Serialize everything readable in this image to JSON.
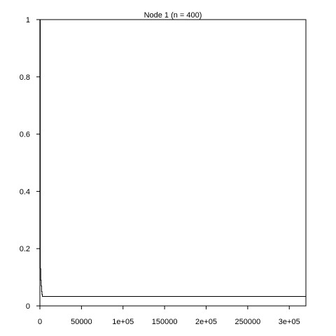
{
  "chart_data": {
    "type": "line",
    "title": "Node 1 (n = 400)",
    "xlabel": "",
    "ylabel": "",
    "xlim": [
      0,
      320000
    ],
    "ylim": [
      0,
      1
    ],
    "x_ticks": [
      0,
      50000,
      100000,
      150000,
      200000,
      250000,
      300000
    ],
    "x_tick_labels": [
      "0",
      "50000",
      "1e+05",
      "150000",
      "2e+05",
      "250000",
      "3e+05"
    ],
    "y_ticks": [
      0,
      0.2,
      0.4,
      0.6,
      0.8,
      1
    ],
    "y_tick_labels": [
      "0",
      "0.2",
      "0.4",
      "0.6",
      "0.8",
      "1"
    ],
    "grid": false,
    "legend": "none",
    "colors": {
      "line": "#000000",
      "axis": "#000000",
      "background": "#ffffff"
    },
    "series": [
      {
        "step": true,
        "x": [
          0,
          500,
          1000,
          1500,
          2000,
          2500,
          3000,
          320000
        ],
        "y": [
          1,
          0.13,
          0.09,
          0.07,
          0.05,
          0.04,
          0.033,
          0.033
        ]
      }
    ]
  }
}
